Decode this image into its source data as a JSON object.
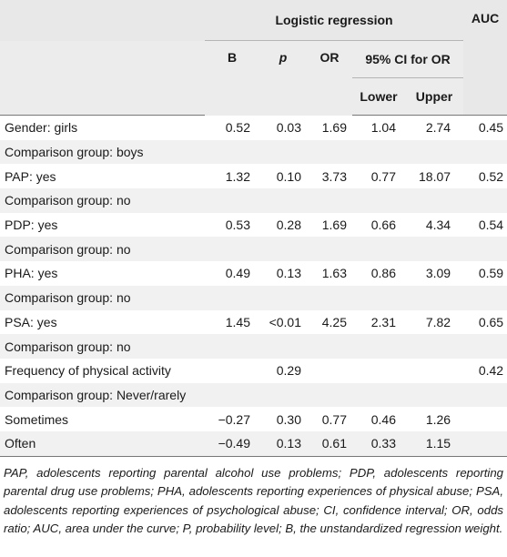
{
  "header": {
    "logistic_regression": "Logistic regression",
    "auc": "AUC",
    "b": "B",
    "p": "p",
    "or": "OR",
    "ci": "95% CI for OR",
    "lower": "Lower",
    "upper": "Upper"
  },
  "rows": [
    {
      "label": "Gender: girls",
      "b": "0.52",
      "p": "0.03",
      "or": "1.69",
      "lower": "1.04",
      "upper": "2.74",
      "auc": "0.45"
    },
    {
      "label": "Comparison group: boys",
      "b": "",
      "p": "",
      "or": "",
      "lower": "",
      "upper": "",
      "auc": ""
    },
    {
      "label": "PAP: yes",
      "b": "1.32",
      "p": "0.10",
      "or": "3.73",
      "lower": "0.77",
      "upper": "18.07",
      "auc": "0.52"
    },
    {
      "label": "Comparison group: no",
      "b": "",
      "p": "",
      "or": "",
      "lower": "",
      "upper": "",
      "auc": ""
    },
    {
      "label": "PDP: yes",
      "b": "0.53",
      "p": "0.28",
      "or": "1.69",
      "lower": "0.66",
      "upper": "4.34",
      "auc": "0.54"
    },
    {
      "label": "Comparison group: no",
      "b": "",
      "p": "",
      "or": "",
      "lower": "",
      "upper": "",
      "auc": ""
    },
    {
      "label": "PHA: yes",
      "b": "0.49",
      "p": "0.13",
      "or": "1.63",
      "lower": "0.86",
      "upper": "3.09",
      "auc": "0.59"
    },
    {
      "label": "Comparison group: no",
      "b": "",
      "p": "",
      "or": "",
      "lower": "",
      "upper": "",
      "auc": ""
    },
    {
      "label": "PSA: yes",
      "b": "1.45",
      "p": "<0.01",
      "or": "4.25",
      "lower": "2.31",
      "upper": "7.82",
      "auc": "0.65"
    },
    {
      "label": "Comparison group: no",
      "b": "",
      "p": "",
      "or": "",
      "lower": "",
      "upper": "",
      "auc": ""
    },
    {
      "label": "Frequency of physical activity",
      "b": "",
      "p": "0.29",
      "or": "",
      "lower": "",
      "upper": "",
      "auc": "0.42"
    },
    {
      "label": "Comparison group: Never/rarely",
      "b": "",
      "p": "",
      "or": "",
      "lower": "",
      "upper": "",
      "auc": ""
    },
    {
      "label": "Sometimes",
      "b": "−0.27",
      "p": "0.30",
      "or": "0.77",
      "lower": "0.46",
      "upper": "1.26",
      "auc": ""
    },
    {
      "label": "Often",
      "b": "−0.49",
      "p": "0.13",
      "or": "0.61",
      "lower": "0.33",
      "upper": "1.15",
      "auc": ""
    }
  ],
  "footnote": "PAP, adolescents reporting parental alcohol use problems; PDP, adolescents reporting parental drug use problems; PHA, adolescents reporting experiences of physical abuse; PSA, adolescents reporting experiences of psychological abuse; CI, confidence interval; OR, odds ratio; AUC, area under the curve; P, probability level; B, the unstandardized regression weight."
}
